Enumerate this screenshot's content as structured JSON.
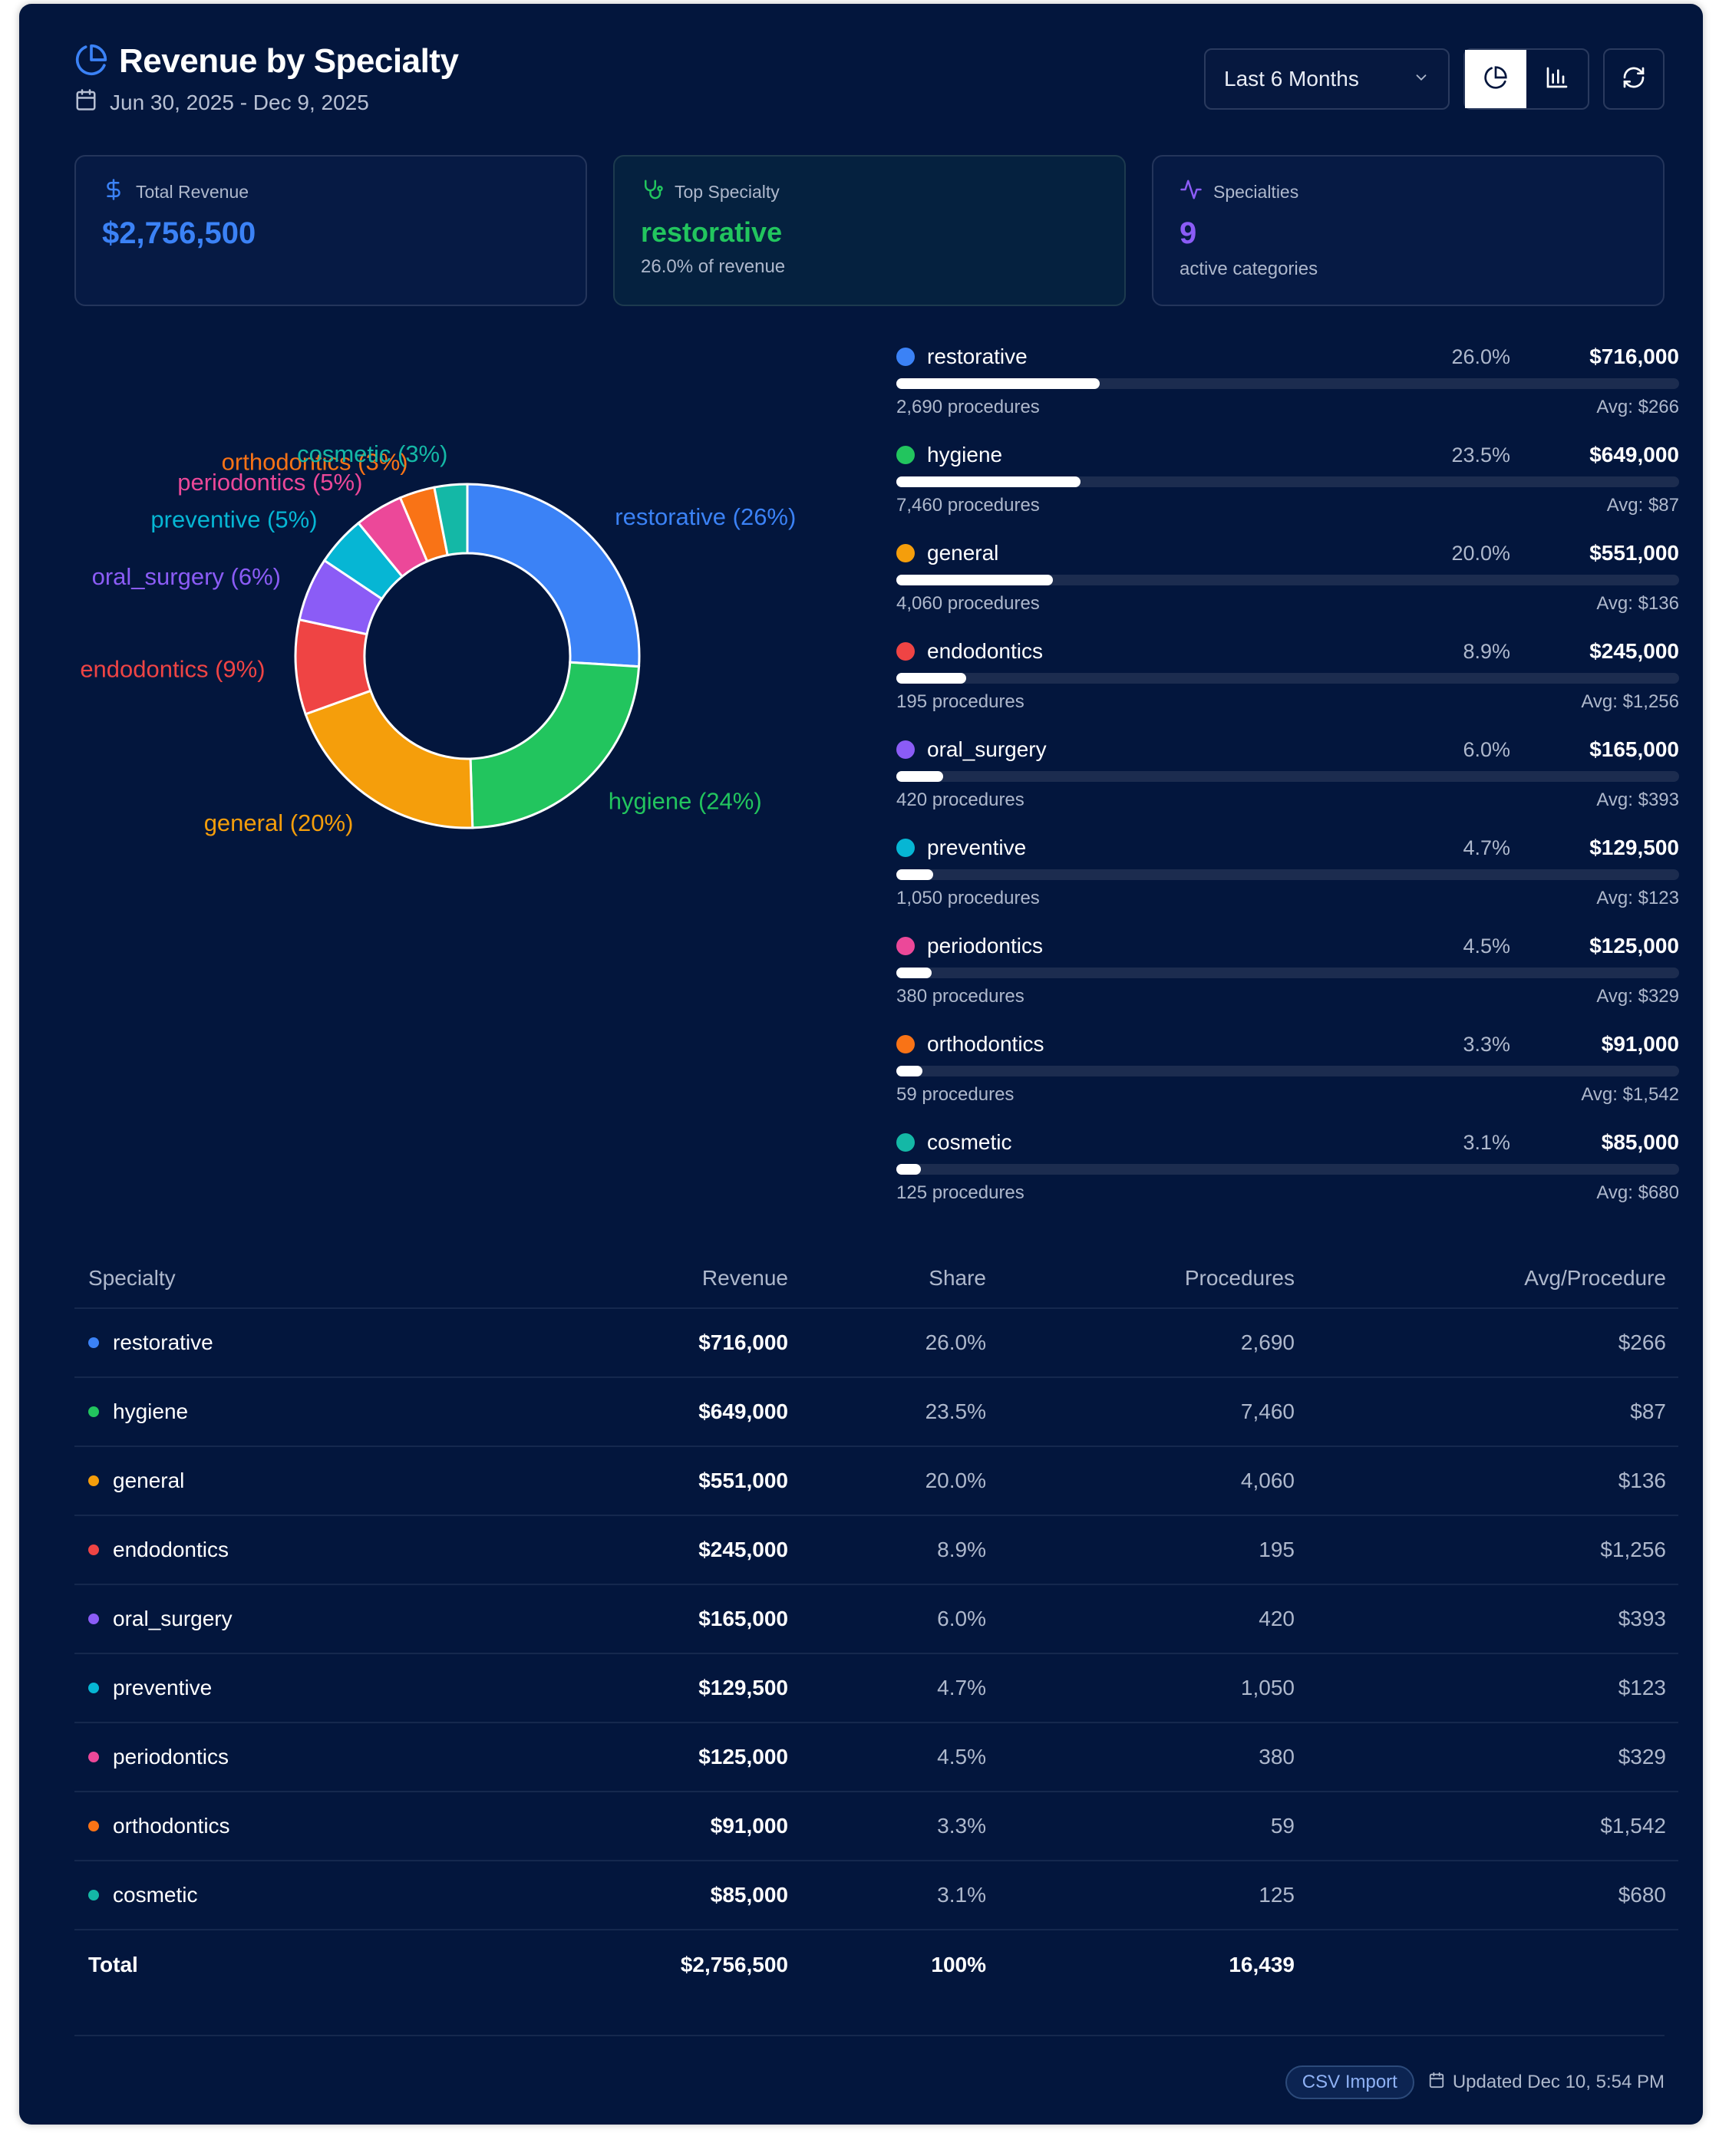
{
  "header": {
    "title": "Revenue by Specialty",
    "date_range": "Jun 30, 2025 - Dec 9, 2025"
  },
  "controls": {
    "period": "Last 6 Months"
  },
  "stats": {
    "total": {
      "label": "Total Revenue",
      "value": "$2,756,500"
    },
    "top": {
      "label": "Top Specialty",
      "value": "restorative",
      "sub": "26.0% of revenue"
    },
    "count": {
      "label": "Specialties",
      "value": "9",
      "sub": "active categories"
    }
  },
  "colors": {
    "restorative": "#3b82f6",
    "hygiene": "#22c55e",
    "general": "#f59e0b",
    "endodontics": "#ef4444",
    "oral_surgery": "#8b5cf6",
    "preventive": "#06b6d4",
    "periodontics": "#ec4899",
    "orthodontics": "#f97316",
    "cosmetic": "#14b8a6",
    "accent_green": "#22c55e",
    "accent_blue": "#3b82f6",
    "accent_purple": "#8b5cf6"
  },
  "chart_data": {
    "type": "pie",
    "variant": "donut",
    "labels": [
      "restorative",
      "hygiene",
      "general",
      "endodontics",
      "oral_surgery",
      "preventive",
      "periodontics",
      "orthodontics",
      "cosmetic"
    ],
    "values": [
      716000,
      649000,
      551000,
      245000,
      165000,
      129500,
      125000,
      91000,
      85000
    ],
    "label_texts": [
      "restorative (26%)",
      "hygiene (24%)",
      "general (20%)",
      "endodontics (9%)",
      "oral_surgery (6%)",
      "preventive (5%)",
      "periodontics (5%)",
      "orthodontics (3%)",
      "cosmetic (3%)"
    ]
  },
  "specialties": [
    {
      "key": "restorative",
      "name": "restorative",
      "share": "26.0%",
      "share_value": 26.0,
      "revenue": "$716,000",
      "procedures_text": "2,690 procedures",
      "avg_text": "Avg: $266",
      "procedures": "2,690",
      "avg": "$266"
    },
    {
      "key": "hygiene",
      "name": "hygiene",
      "share": "23.5%",
      "share_value": 23.5,
      "revenue": "$649,000",
      "procedures_text": "7,460 procedures",
      "avg_text": "Avg: $87",
      "procedures": "7,460",
      "avg": "$87"
    },
    {
      "key": "general",
      "name": "general",
      "share": "20.0%",
      "share_value": 20.0,
      "revenue": "$551,000",
      "procedures_text": "4,060 procedures",
      "avg_text": "Avg: $136",
      "procedures": "4,060",
      "avg": "$136"
    },
    {
      "key": "endodontics",
      "name": "endodontics",
      "share": "8.9%",
      "share_value": 8.9,
      "revenue": "$245,000",
      "procedures_text": "195 procedures",
      "avg_text": "Avg: $1,256",
      "procedures": "195",
      "avg": "$1,256"
    },
    {
      "key": "oral_surgery",
      "name": "oral_surgery",
      "share": "6.0%",
      "share_value": 6.0,
      "revenue": "$165,000",
      "procedures_text": "420 procedures",
      "avg_text": "Avg: $393",
      "procedures": "420",
      "avg": "$393"
    },
    {
      "key": "preventive",
      "name": "preventive",
      "share": "4.7%",
      "share_value": 4.7,
      "revenue": "$129,500",
      "procedures_text": "1,050 procedures",
      "avg_text": "Avg: $123",
      "procedures": "1,050",
      "avg": "$123"
    },
    {
      "key": "periodontics",
      "name": "periodontics",
      "share": "4.5%",
      "share_value": 4.5,
      "revenue": "$125,000",
      "procedures_text": "380 procedures",
      "avg_text": "Avg: $329",
      "procedures": "380",
      "avg": "$329"
    },
    {
      "key": "orthodontics",
      "name": "orthodontics",
      "share": "3.3%",
      "share_value": 3.3,
      "revenue": "$91,000",
      "procedures_text": "59 procedures",
      "avg_text": "Avg: $1,542",
      "procedures": "59",
      "avg": "$1,542"
    },
    {
      "key": "cosmetic",
      "name": "cosmetic",
      "share": "3.1%",
      "share_value": 3.1,
      "revenue": "$85,000",
      "procedures_text": "125 procedures",
      "avg_text": "Avg: $680",
      "procedures": "125",
      "avg": "$680"
    }
  ],
  "table": {
    "headers": {
      "specialty": "Specialty",
      "revenue": "Revenue",
      "share": "Share",
      "procedures": "Procedures",
      "avg": "Avg/Procedure"
    },
    "total": {
      "label": "Total",
      "revenue": "$2,756,500",
      "share": "100%",
      "procedures": "16,439"
    }
  },
  "footer": {
    "badge": "CSV Import",
    "updated": "Updated Dec 10, 5:54 PM"
  }
}
